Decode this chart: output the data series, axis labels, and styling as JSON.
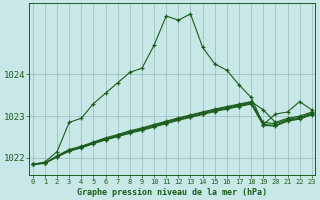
{
  "title": "Graphe pression niveau de la mer (hPa)",
  "bg_color": "#c8e8e8",
  "line_color": "#1a5c1a",
  "grid_color": "#99bbbb",
  "ylim": [
    1021.6,
    1025.7
  ],
  "yticks": [
    1022,
    1023,
    1024
  ],
  "main_line": [
    1021.85,
    1021.9,
    1022.15,
    1022.85,
    1022.95,
    1023.3,
    1023.55,
    1023.8,
    1024.05,
    1024.15,
    1024.7,
    1025.4,
    1025.3,
    1025.45,
    1024.65,
    1024.25,
    1024.1,
    1023.75,
    1023.45,
    1022.8,
    1023.05,
    1023.1,
    1023.35,
    1023.15
  ],
  "flat1": [
    1021.85,
    1021.87,
    1022.05,
    1022.2,
    1022.28,
    1022.38,
    1022.48,
    1022.56,
    1022.65,
    1022.72,
    1022.8,
    1022.88,
    1022.96,
    1023.03,
    1023.1,
    1023.17,
    1023.23,
    1023.29,
    1023.35,
    1023.15,
    1022.85,
    1022.95,
    1023.0,
    1023.1
  ],
  "flat2": [
    1021.85,
    1021.87,
    1022.04,
    1022.18,
    1022.26,
    1022.36,
    1022.46,
    1022.54,
    1022.63,
    1022.7,
    1022.78,
    1022.86,
    1022.94,
    1023.01,
    1023.08,
    1023.15,
    1023.21,
    1023.27,
    1023.33,
    1022.85,
    1022.82,
    1022.92,
    1022.97,
    1023.07
  ],
  "flat3": [
    1021.85,
    1021.87,
    1022.03,
    1022.17,
    1022.25,
    1022.35,
    1022.44,
    1022.52,
    1022.61,
    1022.68,
    1022.76,
    1022.84,
    1022.92,
    1022.99,
    1023.06,
    1023.13,
    1023.19,
    1023.25,
    1023.31,
    1022.8,
    1022.78,
    1022.9,
    1022.95,
    1023.05
  ],
  "flat4": [
    1021.85,
    1021.87,
    1022.02,
    1022.16,
    1022.24,
    1022.34,
    1022.43,
    1022.51,
    1022.59,
    1022.66,
    1022.74,
    1022.82,
    1022.9,
    1022.97,
    1023.04,
    1023.11,
    1023.17,
    1023.23,
    1023.29,
    1022.78,
    1022.76,
    1022.88,
    1022.93,
    1023.03
  ]
}
